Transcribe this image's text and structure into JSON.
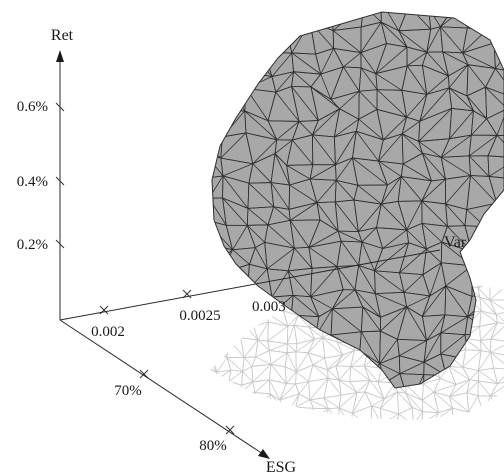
{
  "chart_data": {
    "type": "surface3d",
    "title": "",
    "axes": {
      "ret": {
        "label": "Ret",
        "ticks": [
          {
            "value": 0.002,
            "label": "0.2%"
          },
          {
            "value": 0.004,
            "label": "0.4%"
          },
          {
            "value": 0.006,
            "label": "0.6%"
          }
        ]
      },
      "var": {
        "label": "Var",
        "ticks": [
          {
            "value": 0.002,
            "label": "0.002"
          },
          {
            "value": 0.0025,
            "label": "0.0025"
          },
          {
            "value": 0.003,
            "label": "0.003"
          }
        ]
      },
      "esg": {
        "label": "ESG",
        "ticks": [
          {
            "value": 0.7,
            "label": "70%"
          },
          {
            "value": 0.8,
            "label": "80%"
          }
        ]
      }
    },
    "surface": {
      "description": "polyhedral efficient surface (mesh) with projected shadow on Var-ESG plane",
      "fill_color": "#a8a8a8",
      "edge_color": "#2f2f2f",
      "shadow_color": "#c9c9c9"
    },
    "grid": false,
    "legend": "none"
  }
}
